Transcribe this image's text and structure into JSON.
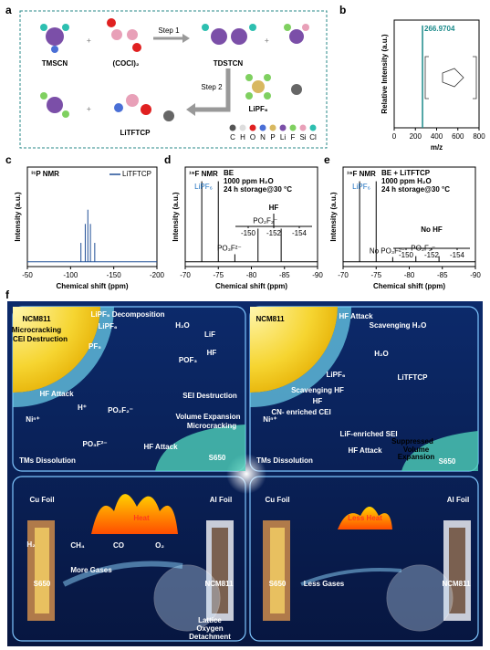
{
  "panels": {
    "a": {
      "label": "a",
      "step1": "Step 1",
      "step2": "Step 2",
      "molecules": [
        "TMSCN",
        "(COCl)₂",
        "TDSTCN",
        "LiPF₆",
        "LiTFTCP"
      ],
      "legend": [
        "C",
        "H",
        "O",
        "N",
        "P",
        "Li",
        "F",
        "Si",
        "Cl"
      ]
    },
    "b": {
      "label": "b",
      "xlabel": "m/z",
      "ylabel": "Relative Intensity (a.u.)",
      "xlim": [
        0,
        800
      ],
      "xticks": [
        0,
        200,
        400,
        600,
        800
      ],
      "ylim": [
        0,
        1
      ],
      "peak": 266.9704,
      "height": 0.95
    },
    "c": {
      "label": "c",
      "title": "³¹P NMR",
      "legend": "LiTFTCP",
      "color": "#1f4e96",
      "xlabel": "Chemical shift (ppm)",
      "ylabel": "Intensity (a.u.)",
      "xlim": [
        -50,
        -200
      ],
      "xticks": [
        -50,
        -100,
        -150,
        -200
      ],
      "ylim": [
        -0.05,
        1
      ],
      "peaks": {
        "x": [
          -112,
          -117,
          -120,
          -123,
          -128
        ],
        "height": [
          0.2,
          0.4,
          0.55,
          0.4,
          0.2
        ]
      }
    },
    "d": {
      "label": "d",
      "title": "¹⁹F NMR",
      "notes": [
        "BE",
        "1000 ppm H₂O",
        "24 h storage@30 °C"
      ],
      "xlabel": "Chemical shift (ppm)",
      "ylabel": "Intensity (a.u.)",
      "xlim": [
        -70,
        -90
      ],
      "xticks": [
        -70,
        -75,
        -80,
        -85,
        -90
      ],
      "ylim": [
        -0.05,
        1
      ],
      "peaks": {
        "x": [
          -72.5,
          -75,
          -77.5,
          -81,
          -84.5
        ],
        "height": [
          0.85,
          0.85,
          0.08,
          0.35,
          0.35
        ]
      },
      "annotations": [
        "LiPF₆",
        "PO₃F²⁻",
        "PO₂F₂⁻"
      ],
      "inset": {
        "label": "HF",
        "xlim": [
          -149,
          -155
        ],
        "xticks": [
          -150,
          -152,
          -154
        ],
        "peak": -152
      }
    },
    "e": {
      "label": "e",
      "title": "¹⁹F NMR",
      "notes": [
        "BE + LiTFTCP",
        "1000 ppm H₂O",
        "24 h storage@30 °C"
      ],
      "xlabel": "Chemical shift (ppm)",
      "ylabel": "Intensity (a.u.)",
      "xlim": [
        -70,
        -90
      ],
      "xticks": [
        -70,
        -75,
        -80,
        -85,
        -90
      ],
      "ylim": [
        -0.05,
        1
      ],
      "peaks": {
        "x": [
          -72.5,
          -75,
          -77.5,
          -81,
          -84.5
        ],
        "height": [
          0.85,
          0.85,
          0.05,
          0.06,
          0.06
        ]
      },
      "annotations": [
        "LiPF₆",
        "No PO₃F²⁻",
        "PO₂F₂⁻"
      ],
      "inset": {
        "label": "No HF",
        "xlim": [
          -149,
          -155
        ],
        "xticks": [
          -150,
          -152,
          -154
        ]
      }
    },
    "f": {
      "label": "f",
      "top_left": [
        "NCM811",
        "Microcracking",
        "CEI Destruction",
        "LiPF₆ Decomposition",
        "LiPF₆",
        "PF₅",
        "H₂O",
        "LiF",
        "HF",
        "POF₃",
        "HF Attack",
        "H⁺",
        "PO₂F₂⁻",
        "PO₃F²⁻",
        "SEI Destruction",
        "Volume Expansion",
        "Microcracking",
        "HF Attack",
        "S650",
        "TMs Dissolution",
        "Niⁿ⁺"
      ],
      "top_right": [
        "NCM811",
        "HF Attack",
        "Scavenging H₂O",
        "H₂O",
        "LiTFTCP",
        "LiPF₆",
        "Scavenging HF",
        "HF",
        "CN- enriched CEI",
        "LiF-enriched SEI",
        "HF Attack",
        "Suppressed",
        "Volume",
        "Expansion",
        "TMs Dissolution",
        "S650",
        "Niⁿ⁺"
      ],
      "bottom_left": [
        "Cu Foil",
        "Al Foil",
        "Heat",
        "S650",
        "NCM811",
        "H₂",
        "CH₄",
        "CO",
        "O₂",
        "More Gases",
        "Lattice",
        "Oxygen",
        "Detachment"
      ],
      "bottom_right": [
        "Cu Foil",
        "Al Foil",
        "Less Heat",
        "S650",
        "NCM811",
        "Less Gases"
      ]
    }
  }
}
